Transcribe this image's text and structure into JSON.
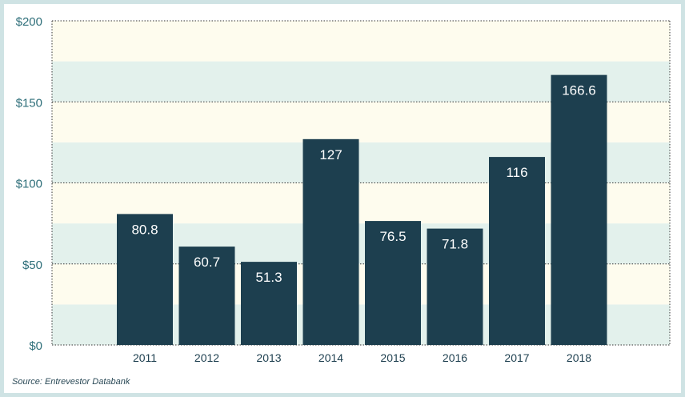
{
  "chart_data": {
    "type": "bar",
    "categories": [
      "2011",
      "2012",
      "2013",
      "2014",
      "2015",
      "2016",
      "2017",
      "2018"
    ],
    "values": [
      80.8,
      60.7,
      51.3,
      127,
      76.5,
      71.8,
      116,
      166.6
    ],
    "value_labels": [
      "80.8",
      "60.7",
      "51.3",
      "127",
      "76.5",
      "71.8",
      "116",
      "166.6"
    ],
    "y_ticks": [
      0,
      50,
      100,
      150,
      200
    ],
    "y_tick_labels": [
      "$0",
      "$50",
      "$100",
      "$150",
      "$200"
    ],
    "ylim": [
      0,
      200
    ],
    "title": "",
    "xlabel": "",
    "ylabel": "",
    "grid": true,
    "band_colors": [
      "#e3f1ec",
      "#fefcee"
    ],
    "bar_color": "#1d3f4f",
    "label_color": "#ffffff",
    "tick_color": "#2f6f7a"
  },
  "source": "Source: Entrevestor Databank"
}
